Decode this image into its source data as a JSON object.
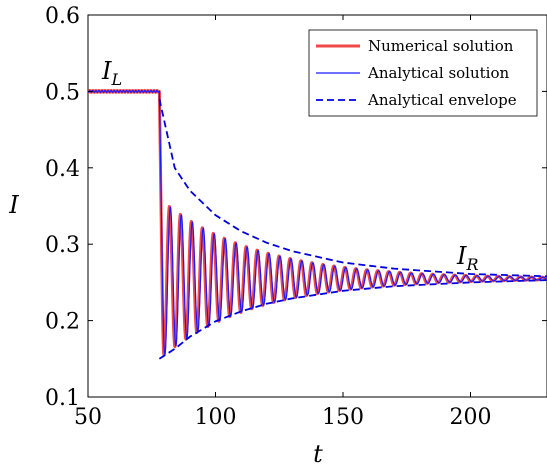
{
  "chart_data": {
    "type": "line",
    "xlabel": "t",
    "ylabel": "I",
    "xlim": [
      50,
      230
    ],
    "ylim": [
      0.1,
      0.6
    ],
    "xticks": [
      50,
      100,
      150,
      200
    ],
    "yticks": [
      0.1,
      0.2,
      0.3,
      0.4,
      0.5,
      0.6
    ],
    "xtick_labels": [
      "50",
      "100",
      "150",
      "200"
    ],
    "ytick_labels": [
      "0.1",
      "0.2",
      "0.3",
      "0.4",
      "0.5",
      "0.6"
    ],
    "grid": false,
    "legend_position": "top-right",
    "annotations": [
      {
        "text_base": "I",
        "text_sub": "L",
        "x": 54,
        "y": 0.52
      },
      {
        "text_base": "I",
        "text_sub": "R",
        "x": 196,
        "y": 0.275
      }
    ],
    "model": {
      "t_switch": 78,
      "t_end": 230,
      "plateau_level": 0.5,
      "final_level": 0.255,
      "initial_amplitude": 0.105,
      "decay_time": 37,
      "oscillation_period": 4.3,
      "numerical_phase_lead": 0.35
    },
    "series": [
      {
        "name": "Numerical solution",
        "color": "#f04848",
        "style": "solid",
        "width": 3
      },
      {
        "name": "Analytical solution",
        "color": "#1a1aff",
        "style": "solid",
        "width": 1.2
      },
      {
        "name": "Analytical envelope",
        "color": "#0000dd",
        "style": "dashed",
        "width": 1.8,
        "upper_at": {
          "t": [
            78,
            84,
            90,
            100,
            110,
            120,
            130,
            150,
            170,
            200,
            230
          ],
          "y": [
            0.49,
            0.4,
            0.37,
            0.338,
            0.317,
            0.302,
            0.291,
            0.276,
            0.268,
            0.261,
            0.258
          ]
        },
        "lower_at": {
          "t": [
            78,
            84,
            90,
            100,
            110,
            120,
            130,
            150,
            170,
            200,
            230
          ],
          "y": [
            0.15,
            0.163,
            0.179,
            0.199,
            0.212,
            0.222,
            0.229,
            0.239,
            0.245,
            0.25,
            0.253
          ]
        }
      }
    ]
  }
}
